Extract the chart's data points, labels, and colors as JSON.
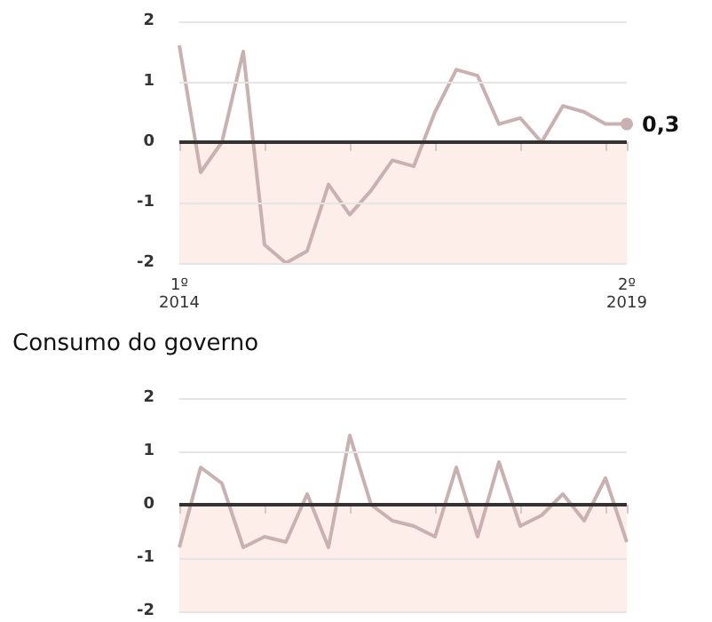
{
  "chart_data": [
    {
      "type": "line",
      "categories": [
        "1º\n2014",
        null,
        null,
        null,
        null,
        null,
        null,
        null,
        null,
        null,
        null,
        null,
        null,
        null,
        null,
        null,
        null,
        null,
        null,
        null,
        null,
        "2º\n2019"
      ],
      "series": [
        {
          "color": "#c9b1b1",
          "values": [
            1.6,
            -0.5,
            0.0,
            1.5,
            -1.7,
            -2.0,
            -1.8,
            -0.7,
            -1.2,
            -0.8,
            -0.3,
            -0.4,
            0.5,
            1.2,
            1.1,
            0.3,
            0.4,
            0.0,
            0.6,
            0.5,
            0.3,
            0.3
          ],
          "value_labels": [
            null,
            null,
            null,
            null,
            null,
            null,
            null,
            null,
            null,
            null,
            null,
            null,
            null,
            null,
            null,
            null,
            null,
            null,
            null,
            null,
            null,
            "0,3"
          ]
        }
      ],
      "ylim": [
        -2,
        2
      ],
      "yticks": [
        -2,
        -1,
        0,
        1,
        2
      ],
      "grid": "y",
      "ref_lines": [
        {
          "axis": "y",
          "value": 0,
          "color": "#333333"
        }
      ],
      "bands": [
        {
          "axis": "y",
          "from": -2,
          "to": 0,
          "color": "#fdeee9"
        }
      ]
    },
    {
      "type": "line",
      "title": "Consumo do governo",
      "categories": [
        null,
        null,
        null,
        null,
        null,
        null,
        null,
        null,
        null,
        null,
        null,
        null,
        null,
        null,
        null,
        null,
        null,
        null,
        null,
        null,
        null,
        null
      ],
      "series": [
        {
          "color": "#c9b1b1",
          "values": [
            -0.8,
            0.7,
            0.4,
            -0.8,
            -0.6,
            -0.7,
            0.2,
            -0.8,
            1.3,
            0.0,
            -0.3,
            -0.4,
            -0.6,
            0.7,
            -0.6,
            0.8,
            -0.4,
            -0.2,
            0.2,
            -0.3,
            0.5,
            -0.7
          ]
        }
      ],
      "ylim": [
        -2,
        2
      ],
      "yticks": [
        -2,
        -1,
        0,
        1,
        2
      ],
      "grid": "y",
      "tick_labels": "y",
      "ref_lines": [
        {
          "axis": "y",
          "value": 0,
          "color": "#333333"
        }
      ],
      "bands": [
        {
          "axis": "y",
          "from": -2,
          "to": 0,
          "color": "#fdeee9"
        }
      ]
    }
  ]
}
